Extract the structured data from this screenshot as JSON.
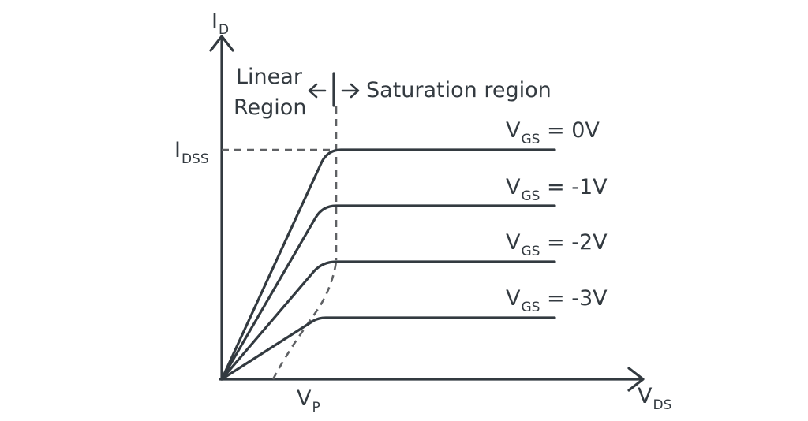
{
  "colors": {
    "stroke": "#333a40",
    "dashed": "#5f6164",
    "background": "#ffffff"
  },
  "axes": {
    "y_label": "I",
    "y_label_sub": "D",
    "x_label": "V",
    "x_label_sub": "DS",
    "idss_label": "I",
    "idss_label_sub": "DSS",
    "vp_label": "V",
    "vp_label_sub": "P"
  },
  "regions": {
    "linear_line1": "Linear",
    "linear_line2": "Region",
    "saturation": "Saturation region",
    "left_arrow": "←",
    "right_arrow": "→"
  },
  "curves": [
    {
      "var": "V",
      "sub": "GS",
      "value": " = 0V"
    },
    {
      "var": "V",
      "sub": "GS",
      "value": " = -1V"
    },
    {
      "var": "V",
      "sub": "GS",
      "value": " = -2V"
    },
    {
      "var": "V",
      "sub": "GS",
      "value": " = -3V"
    }
  ]
}
